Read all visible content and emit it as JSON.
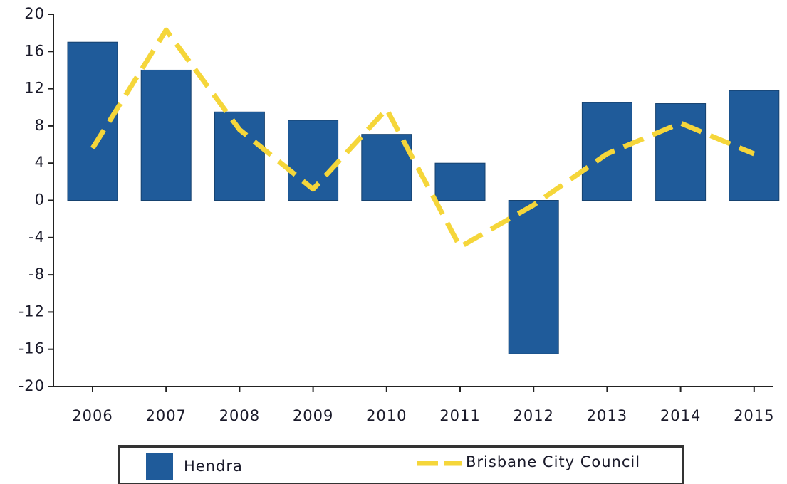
{
  "chart_data": {
    "type": "bar",
    "categories": [
      "2006",
      "2007",
      "2008",
      "2009",
      "2010",
      "2011",
      "2012",
      "2013",
      "2014",
      "2015"
    ],
    "series": [
      {
        "name": "Hendra",
        "type": "bar",
        "color": "#1f5b9a",
        "values": [
          17,
          14,
          9.5,
          8.6,
          7.1,
          4,
          -16.5,
          10.5,
          10.4,
          11.8
        ]
      },
      {
        "name": "Brisbane City Council",
        "type": "line",
        "color": "#f5d63a",
        "values": [
          5.6,
          18.3,
          7.6,
          1.2,
          9.8,
          -5,
          -0.5,
          5,
          8.3,
          5
        ]
      }
    ],
    "ylim": [
      -20,
      20
    ],
    "yticks": [
      -20,
      -16,
      -12,
      -8,
      -4,
      0,
      4,
      8,
      12,
      16,
      20
    ],
    "grid": false,
    "legend": "bottom"
  }
}
